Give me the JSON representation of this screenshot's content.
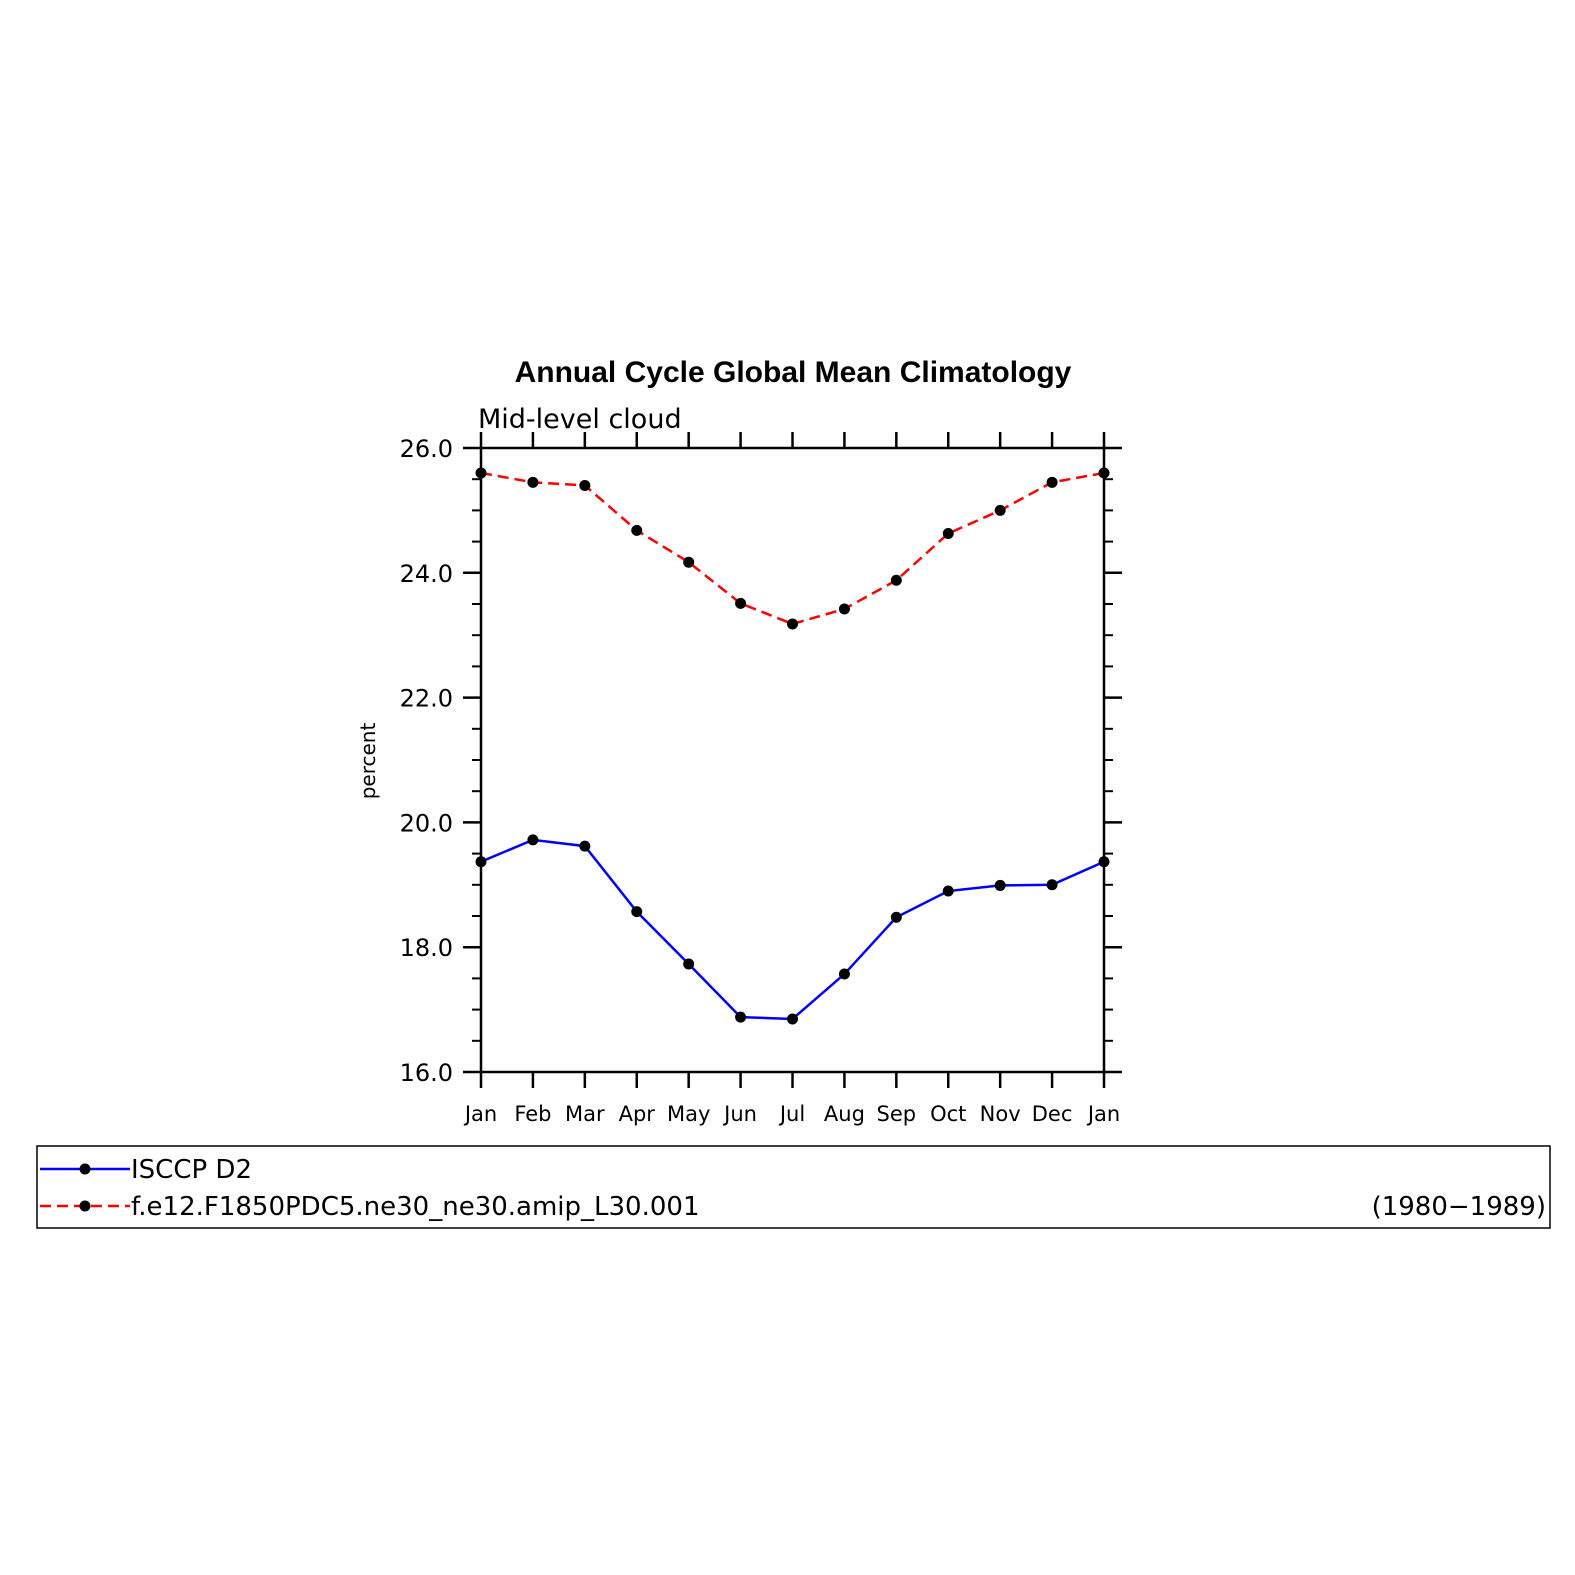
{
  "chart_data": {
    "type": "line",
    "title": "Annual Cycle Global Mean Climatology",
    "subtitle": "Mid-level cloud",
    "xlabel": "",
    "ylabel": "percent",
    "categories": [
      "Jan",
      "Feb",
      "Mar",
      "Apr",
      "May",
      "Jun",
      "Jul",
      "Aug",
      "Sep",
      "Oct",
      "Nov",
      "Dec",
      "Jan"
    ],
    "ylim": [
      16.0,
      26.0
    ],
    "yticks": [
      "16.0",
      "18.0",
      "20.0",
      "22.0",
      "24.0",
      "26.0"
    ],
    "yminor_step": 0.5,
    "grid": false,
    "legend_position": "bottom",
    "series": [
      {
        "name": "ISCCP D2",
        "color": "#0000ff",
        "dash": "solid",
        "marker": "circle",
        "values": [
          19.37,
          19.72,
          19.62,
          18.57,
          17.73,
          16.88,
          16.85,
          17.57,
          18.48,
          18.9,
          18.99,
          19.0,
          19.37
        ]
      },
      {
        "name": "f.e12.F1850PDC5.ne30_ne30.amip_L30.001",
        "color": "#ff0000",
        "dash": "dashed",
        "marker": "circle",
        "values": [
          25.6,
          25.45,
          25.4,
          24.68,
          24.17,
          23.51,
          23.18,
          23.42,
          23.88,
          24.63,
          25.0,
          25.45,
          25.6
        ]
      }
    ],
    "legend_note": "(1980−1989)"
  }
}
